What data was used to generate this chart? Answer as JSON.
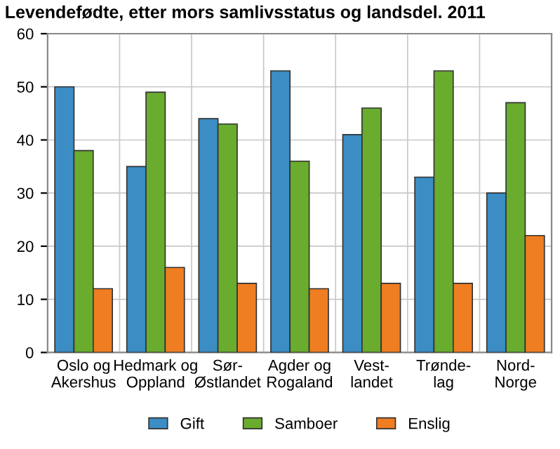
{
  "chart_data": {
    "type": "bar",
    "title": "Levendefødte, etter mors samlivsstatus og landsdel. 2011",
    "categories": [
      "Oslo og\nAkershus",
      "Hedmark og\nOppland",
      "Sør-\nØstlandet",
      "Agder og\nRogaland",
      "Vest-\nlandet",
      "Trønde-\nlag",
      "Nord-\nNorge"
    ],
    "series": [
      {
        "name": "Gift",
        "color": "#3b8dc4",
        "values": [
          50,
          35,
          44,
          53,
          41,
          33,
          30
        ]
      },
      {
        "name": "Samboer",
        "color": "#6aac2e",
        "values": [
          38,
          49,
          43,
          36,
          46,
          53,
          47
        ]
      },
      {
        "name": "Enslig",
        "color": "#ef7d22",
        "values": [
          12,
          16,
          13,
          12,
          13,
          13,
          22
        ]
      }
    ],
    "ylim": [
      0,
      60
    ],
    "yticks": [
      0,
      10,
      20,
      30,
      40,
      50,
      60
    ],
    "grid": true,
    "legend": "bottom"
  }
}
